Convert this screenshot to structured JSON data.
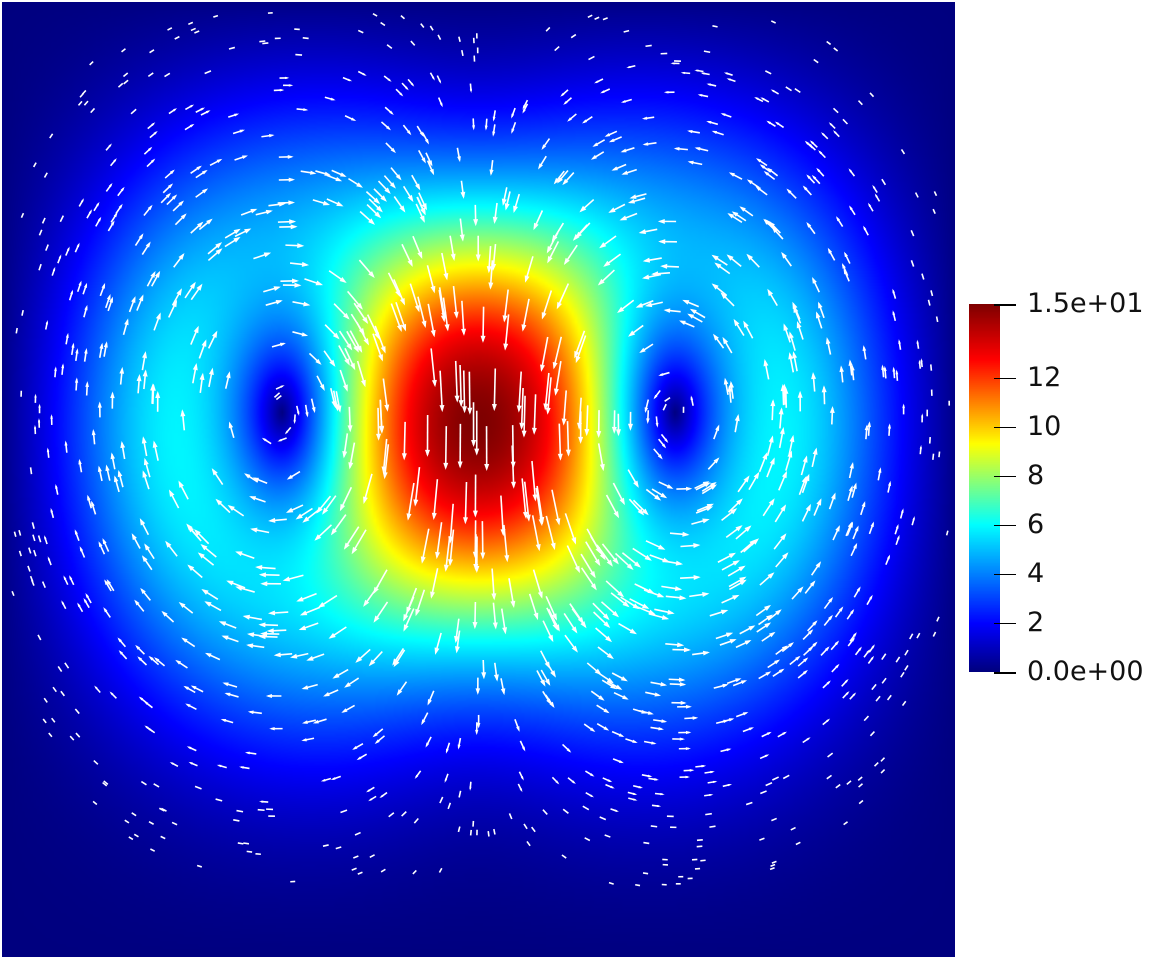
{
  "chart_data": {
    "type": "heatmap",
    "title": "",
    "description_field": "velocity magnitude with white velocity vector glyphs",
    "features": {
      "vortices": 2,
      "central_flow": "downward",
      "side_flow": "upward",
      "peak_value": 15,
      "side_peak_value": 9
    },
    "colorbar": {
      "range": [
        0,
        15
      ],
      "ticks": [
        {
          "value": 15,
          "label": "1.5e+01"
        },
        {
          "value": 12,
          "label": "12"
        },
        {
          "value": 10,
          "label": "10"
        },
        {
          "value": 8,
          "label": "8"
        },
        {
          "value": 6,
          "label": "6"
        },
        {
          "value": 4,
          "label": "4"
        },
        {
          "value": 2,
          "label": "2"
        },
        {
          "value": 0,
          "label": "0.0e+00"
        }
      ],
      "colormap": [
        {
          "pos": 0.0,
          "color": "#00007f"
        },
        {
          "pos": 0.13,
          "color": "#0000ff"
        },
        {
          "pos": 0.4,
          "color": "#00ffff"
        },
        {
          "pos": 0.51,
          "color": "#80ff80"
        },
        {
          "pos": 0.62,
          "color": "#ffff00"
        },
        {
          "pos": 0.85,
          "color": "#ff0000"
        },
        {
          "pos": 1.0,
          "color": "#7f0000"
        }
      ]
    },
    "glyph_color": "#ffffff"
  }
}
